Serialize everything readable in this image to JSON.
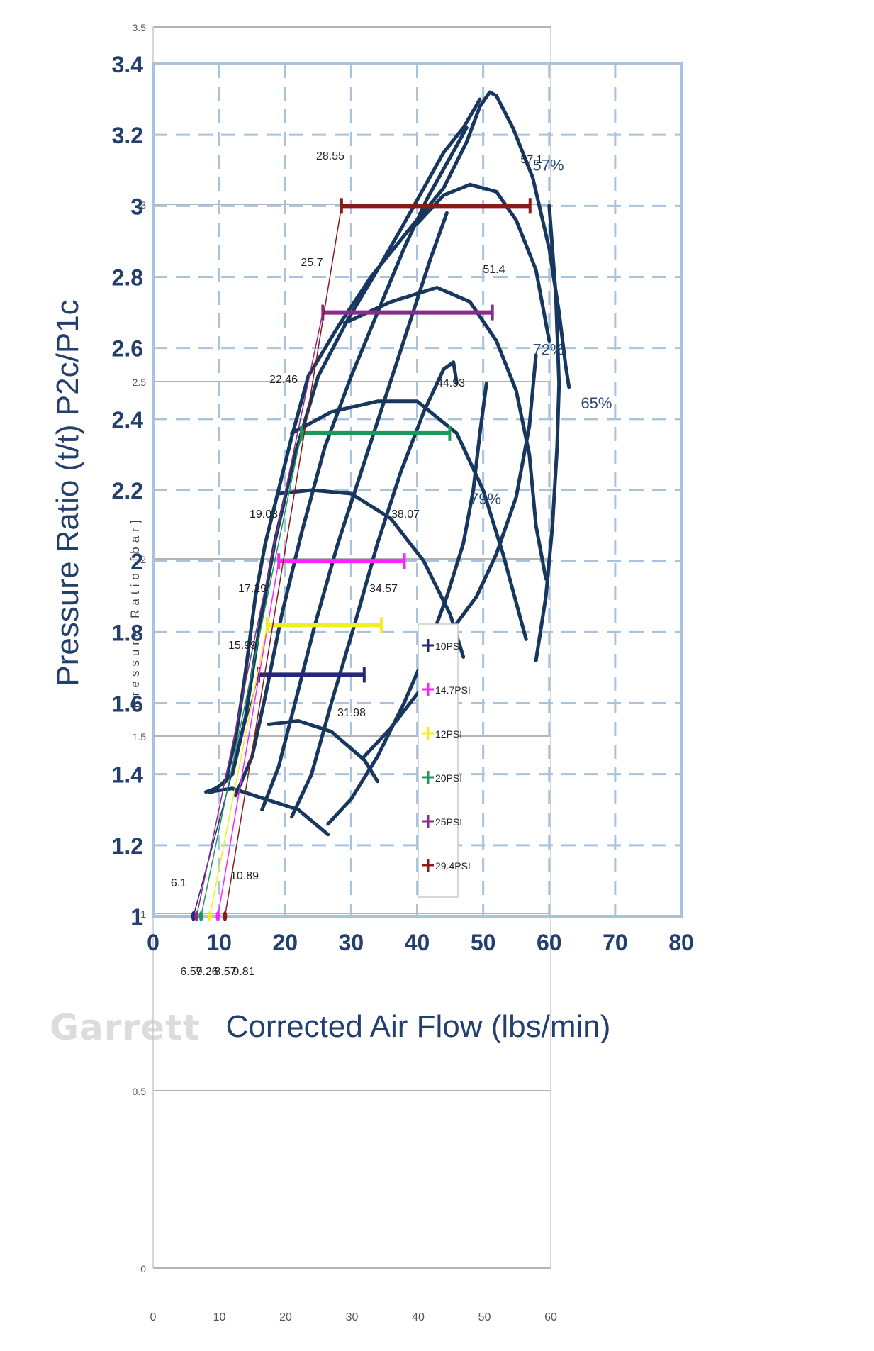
{
  "brand": "Garrett",
  "chart_data": {
    "type": "line",
    "title": "",
    "main_axes": {
      "xlabel": "Corrected Air Flow (lbs/min)",
      "ylabel": "Pressure Ratio (t/t) P2c/P1c",
      "xlim": [
        0,
        80
      ],
      "ylim": [
        1,
        3.4
      ],
      "x_ticks": [
        "0",
        "10",
        "20",
        "30",
        "40",
        "50",
        "60",
        "70",
        "80"
      ],
      "y_ticks": [
        "1",
        "1.2",
        "1.4",
        "1.6",
        "1.8",
        "2",
        "2.2",
        "2.4",
        "2.6",
        "2.8",
        "3",
        "3.2",
        "3.4"
      ]
    },
    "overlay_axes": {
      "ylabel": "Pressure Ratio [bar]",
      "xlim": [
        0,
        60
      ],
      "ylim": [
        0,
        3.5
      ],
      "x_ticks": [
        "0",
        "10",
        "20",
        "30",
        "40",
        "50",
        "60"
      ],
      "y_ticks": [
        "0",
        "0.5",
        "1",
        "1.5",
        "2",
        "2.5",
        "3",
        "3.5"
      ]
    },
    "efficiency_labels": [
      "57%",
      "72%",
      "65%",
      "79%"
    ],
    "boost_series": [
      {
        "name": "10PSI",
        "color": "#27277a",
        "pressure_ratio": 1.68,
        "x_min": 15.99,
        "x_max": 31.98,
        "base_flow": 6.1
      },
      {
        "name": "14.7PSI",
        "color": "#ff22ff",
        "pressure_ratio": 2.0,
        "x_min": 19.03,
        "x_max": 38.07,
        "base_flow": 9.81
      },
      {
        "name": "12PSI",
        "color": "#f0f020",
        "pressure_ratio": 1.82,
        "x_min": 17.29,
        "x_max": 34.57,
        "base_flow": 8.57
      },
      {
        "name": "20PSI",
        "color": "#1a9a5a",
        "pressure_ratio": 2.36,
        "x_min": 22.46,
        "x_max": 44.93,
        "base_flow": 7.26
      },
      {
        "name": "25PSI",
        "color": "#8a2a8a",
        "pressure_ratio": 2.7,
        "x_min": 25.7,
        "x_max": 51.4,
        "base_flow": 6.59
      },
      {
        "name": "29.4PSI",
        "color": "#8a1a1a",
        "pressure_ratio": 3.0,
        "x_min": 28.55,
        "x_max": 57.1,
        "base_flow": 10.89
      }
    ],
    "x_min_labels": [
      "15.99",
      "17.29",
      "19.03",
      "22.46",
      "25.7",
      "28.55"
    ],
    "x_max_labels": [
      "31.98",
      "34.57",
      "38.07",
      "44.93",
      "51.4",
      "57.1"
    ],
    "base_flow_labels": [
      "6.1",
      "10.89",
      "6.59",
      "7.26",
      "8.57",
      "9.81"
    ],
    "map_color": "#17375e"
  }
}
